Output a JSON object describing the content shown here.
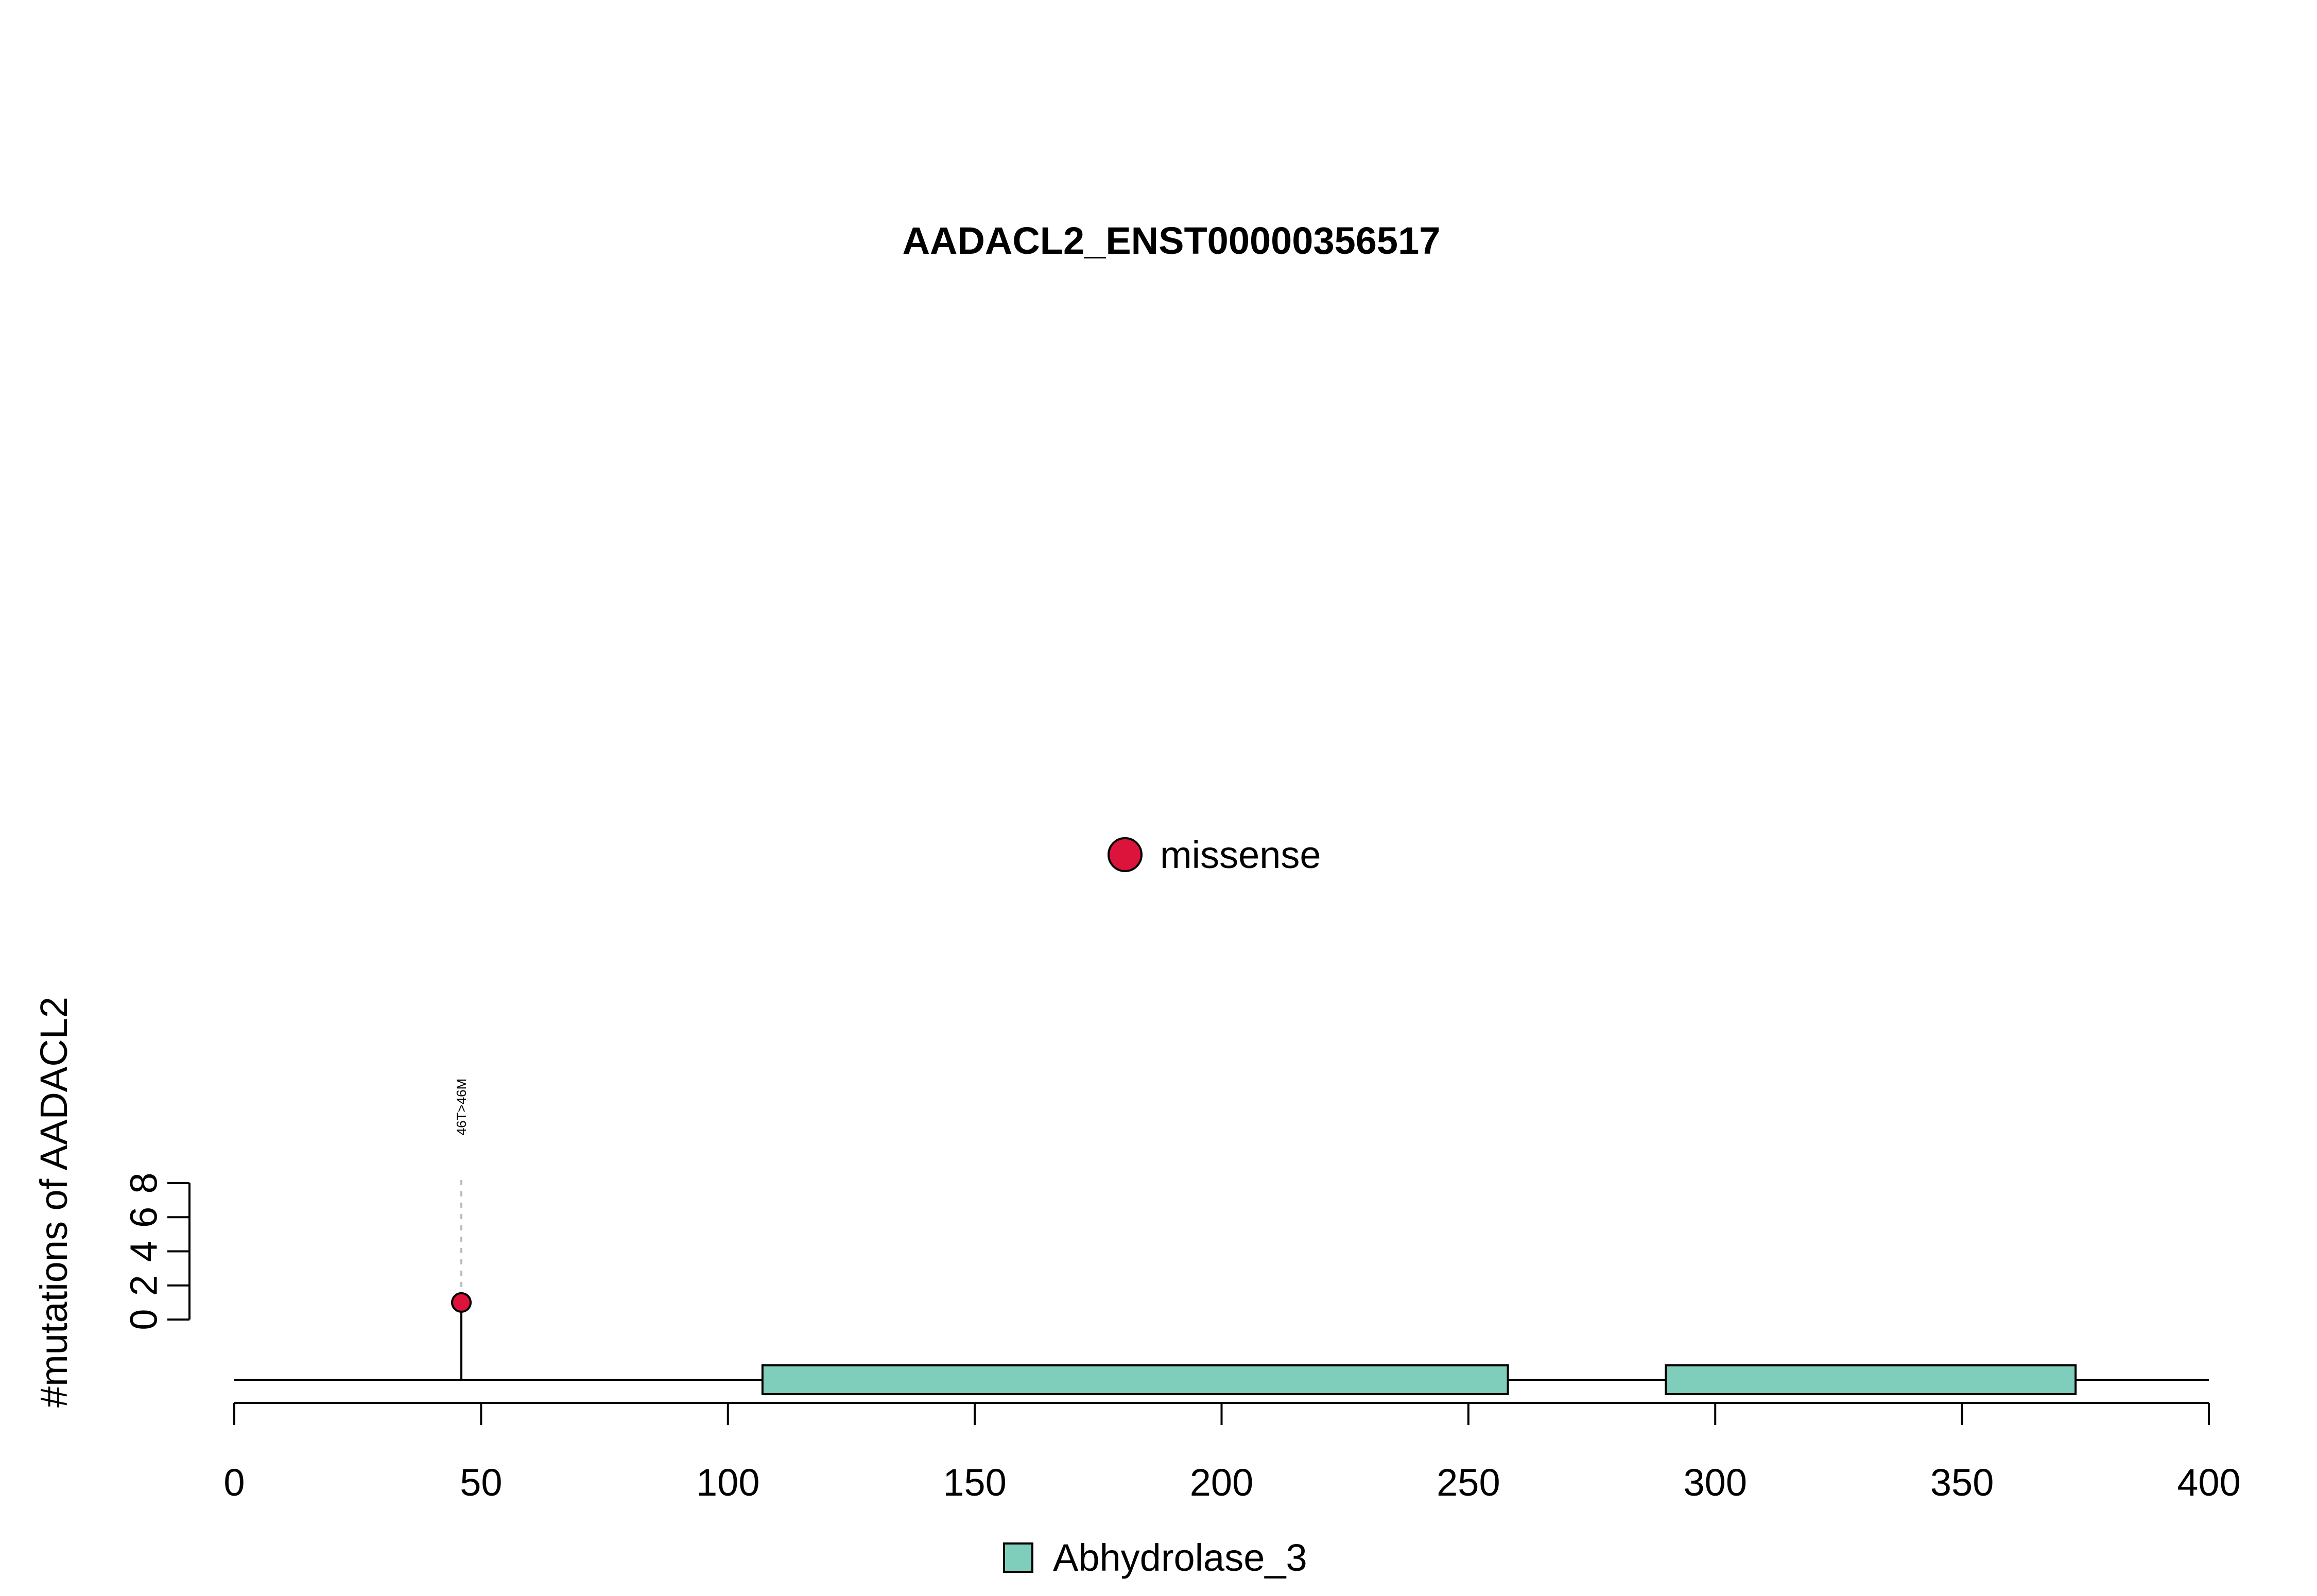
{
  "chart_data": {
    "type": "lollipop",
    "title": "AADACL2_ENST00000356517",
    "ylabel": "#mutations of AADACL2",
    "xlim": [
      0,
      400
    ],
    "x_ticks": [
      0,
      50,
      100,
      150,
      200,
      250,
      300,
      350,
      400
    ],
    "x_tick_labels": [
      "0",
      "50",
      "100",
      "150",
      "200",
      "250",
      "300",
      "350",
      "400"
    ],
    "ylim": [
      0,
      8
    ],
    "y_ticks": [
      0,
      2,
      4,
      6,
      8
    ],
    "y_tick_labels": [
      "0",
      "2",
      "4",
      "6",
      "8"
    ],
    "protein_length": 400,
    "legend_mutation": [
      {
        "name": "missense",
        "color": "#DC143C"
      }
    ],
    "legend_domain": [
      {
        "name": "Abhydrolase_3",
        "color": "#7FCDBB"
      }
    ],
    "domains": [
      {
        "name": "Abhydrolase_3",
        "start": 107,
        "end": 258
      },
      {
        "name": "Abhydrolase_3",
        "start": 290,
        "end": 373
      }
    ],
    "mutations": [
      {
        "position": 46,
        "count": 1,
        "type": "missense",
        "label": "46T>46M"
      }
    ]
  }
}
